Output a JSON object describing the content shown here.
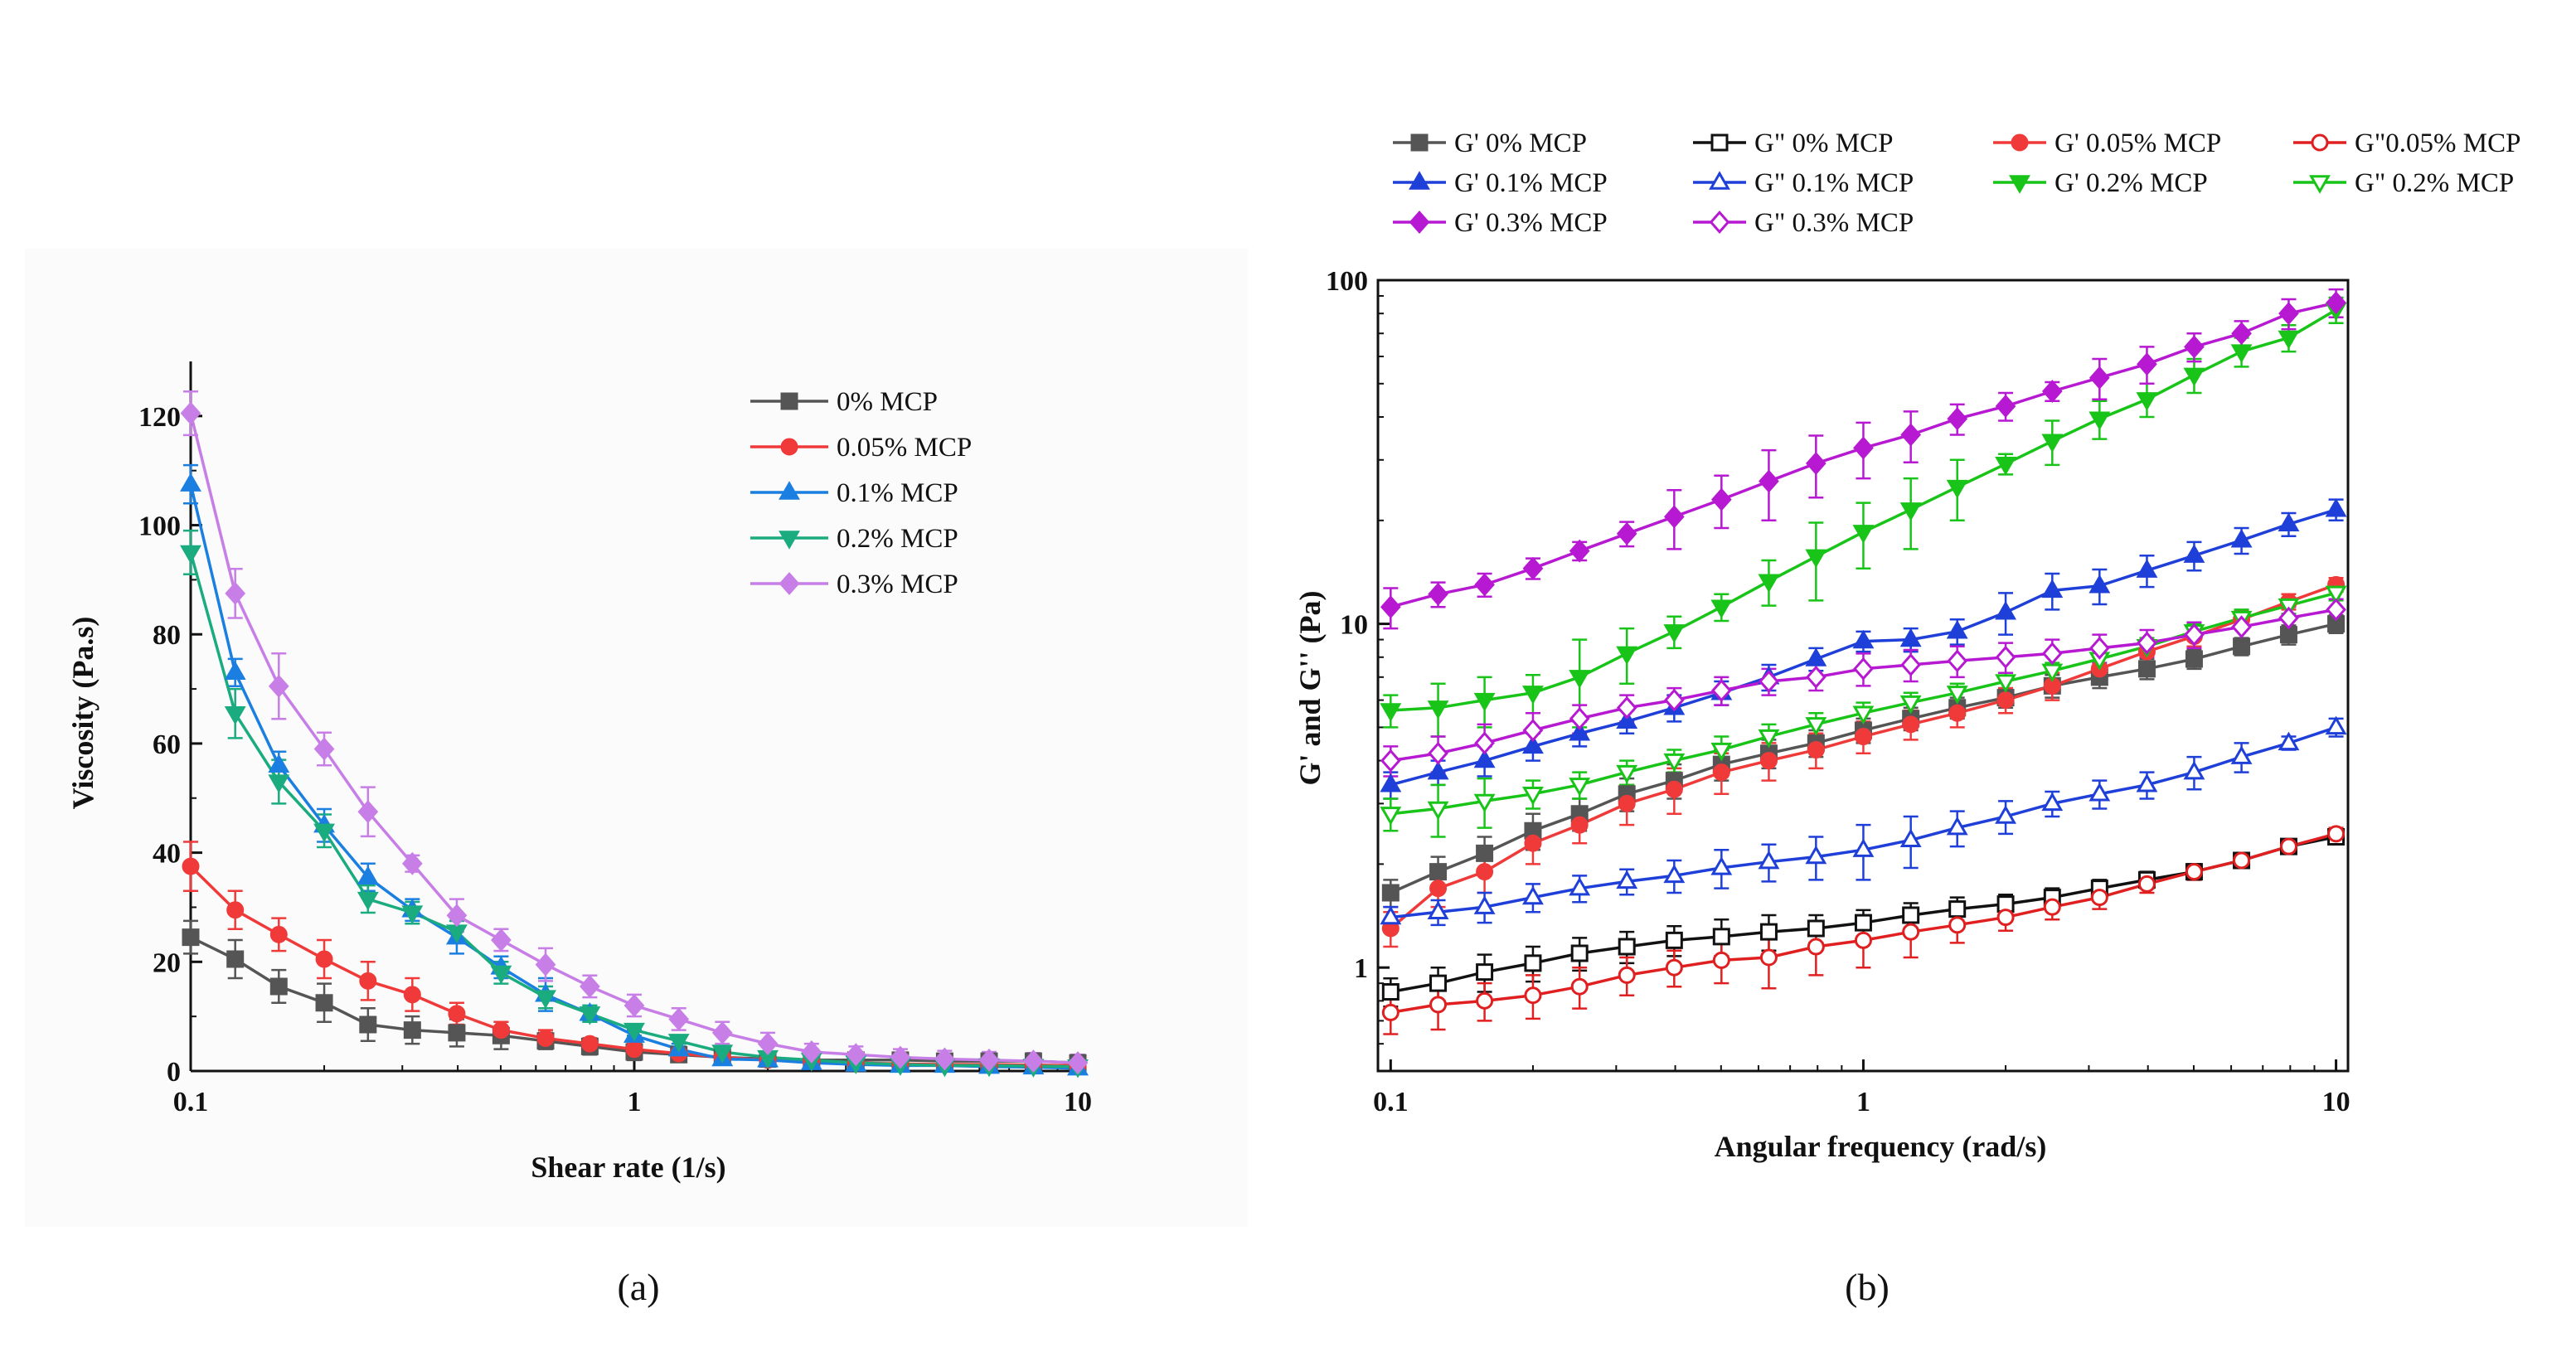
{
  "panels": [
    {
      "caption": "(a)",
      "chart_data": {
        "type": "line",
        "title": "",
        "xlabel": "Shear rate (1/s)",
        "ylabel": "Viscosity (Pa.s)",
        "xscale": "log",
        "xlim": [
          0.1,
          10
        ],
        "ylim": [
          0,
          130
        ],
        "xticks": [
          0.1,
          1,
          10
        ],
        "xtick_labels": [
          "0.1",
          "1",
          "10"
        ],
        "yticks": [
          0,
          20,
          40,
          60,
          80,
          100,
          120
        ],
        "ytick_labels": [
          "0",
          "20",
          "40",
          "60",
          "80",
          "100",
          "120"
        ],
        "grid": false,
        "legend_position": "top-right",
        "x": [
          0.1,
          0.126,
          0.158,
          0.2,
          0.251,
          0.316,
          0.398,
          0.501,
          0.631,
          0.794,
          1.0,
          1.26,
          1.58,
          2.0,
          2.51,
          3.16,
          3.98,
          5.01,
          6.31,
          7.94,
          10.0
        ],
        "series": [
          {
            "name": "0% MCP",
            "color": "#555555",
            "marker": "square",
            "filled": true,
            "values": [
              24.5,
              20.5,
              15.5,
              12.5,
              8.5,
              7.5,
              7.0,
              6.5,
              5.5,
              4.5,
              3.5,
              3.0,
              2.5,
              2.2,
              2.0,
              2.0,
              2.0,
              1.8,
              1.8,
              1.8,
              1.5
            ],
            "errors": [
              3,
              3.5,
              3,
              3.5,
              3,
              2.5,
              2.5,
              2.5,
              1.5,
              1.5,
              1.5,
              1,
              1,
              1,
              1,
              1,
              1,
              1,
              1,
              1,
              1
            ]
          },
          {
            "name": "0.05% MCP",
            "color": "#f03a3a",
            "marker": "circle",
            "filled": true,
            "values": [
              37.5,
              29.5,
              25.0,
              20.5,
              16.5,
              14.0,
              10.5,
              7.5,
              6.0,
              5.0,
              4.0,
              3.2,
              2.5,
              2.0,
              1.8,
              1.5,
              1.3,
              1.2,
              1.2,
              1.1,
              1.0
            ],
            "errors": [
              4.5,
              3.5,
              3,
              3.5,
              3.5,
              3,
              2,
              1.5,
              1.5,
              1,
              1,
              1,
              1,
              1,
              1,
              1,
              1,
              1,
              1,
              1,
              1
            ]
          },
          {
            "name": "0.1% MCP",
            "color": "#1a7fe0",
            "marker": "triangle-up",
            "filled": true,
            "values": [
              107.5,
              73.0,
              56.0,
              45.0,
              35.5,
              29.5,
              24.5,
              19.0,
              14.0,
              10.5,
              6.5,
              4.0,
              2.2,
              2.0,
              1.5,
              1.2,
              1.0,
              1.0,
              0.8,
              0.7,
              0.5
            ],
            "errors": [
              3.5,
              2.5,
              2.5,
              3,
              2.5,
              2,
              3,
              2,
              3,
              1.5,
              1,
              1,
              1,
              1,
              0.8,
              0.8,
              0.8,
              0.8,
              0.8,
              0.8,
              0.8
            ]
          },
          {
            "name": "0.2% MCP",
            "color": "#1aab7f",
            "marker": "triangle-down",
            "filled": true,
            "values": [
              95.0,
              65.5,
              53.0,
              44.0,
              31.5,
              29.0,
              25.5,
              18.0,
              13.5,
              10.5,
              7.5,
              5.5,
              3.5,
              2.5,
              2.0,
              1.5,
              1.2,
              1.0,
              1.0,
              0.9,
              0.8
            ],
            "errors": [
              4,
              4.5,
              4,
              3,
              2.5,
              2,
              2,
              2,
              2,
              1.5,
              1,
              1,
              1,
              1,
              1,
              0.8,
              0.8,
              0.8,
              0.8,
              0.8,
              0.8
            ]
          },
          {
            "name": "0.3% MCP",
            "color": "#c77ee6",
            "marker": "diamond",
            "filled": true,
            "values": [
              120.5,
              87.5,
              70.5,
              59.0,
              47.5,
              38.0,
              28.5,
              24.0,
              19.5,
              15.5,
              12.0,
              9.5,
              7.0,
              5.0,
              3.5,
              3.0,
              2.5,
              2.2,
              2.0,
              1.8,
              1.5
            ],
            "errors": [
              4,
              4.5,
              6,
              3,
              4.5,
              1.5,
              3,
              2,
              3,
              2,
              2,
              2,
              2,
              2,
              1.5,
              1.5,
              1.5,
              1.5,
              1.5,
              1.5,
              1.5
            ]
          }
        ]
      }
    },
    {
      "caption": "(b)",
      "chart_data": {
        "type": "line",
        "title": "",
        "xlabel": "Angular frequency (rad/s)",
        "ylabel": "G' and G'' (Pa)",
        "xscale": "log",
        "yscale": "log",
        "xlim": [
          0.094,
          10.6
        ],
        "ylim": [
          0.5,
          100
        ],
        "xticks": [
          0.1,
          1,
          10
        ],
        "xtick_labels": [
          "0.1",
          "1",
          "10"
        ],
        "yticks": [
          1,
          10,
          100
        ],
        "ytick_labels": [
          "1",
          "10",
          "100"
        ],
        "grid": false,
        "legend_position": "top",
        "x": [
          0.1,
          0.126,
          0.158,
          0.2,
          0.251,
          0.316,
          0.398,
          0.501,
          0.631,
          0.794,
          1.0,
          1.26,
          1.58,
          2.0,
          2.51,
          3.16,
          3.98,
          5.01,
          6.31,
          7.94,
          10.0
        ],
        "series": [
          {
            "name": "G' 0% MCP",
            "color": "#555555",
            "marker": "square",
            "filled": true,
            "values": [
              1.65,
              1.9,
              2.15,
              2.5,
              2.8,
              3.2,
              3.5,
              3.9,
              4.2,
              4.5,
              4.9,
              5.3,
              5.7,
              6.1,
              6.6,
              7.0,
              7.4,
              7.9,
              8.6,
              9.3,
              10.0
            ],
            "errors": [
              0.15,
              0.2,
              0.25,
              0.3,
              0.3,
              0.35,
              0.4,
              0.4,
              0.4,
              0.4,
              0.4,
              0.4,
              0.4,
              0.4,
              0.5,
              0.5,
              0.5,
              0.5,
              0.5,
              0.6,
              0.6
            ]
          },
          {
            "name": "G\" 0% MCP",
            "color": "#111111",
            "marker": "square",
            "filled": false,
            "values": [
              0.85,
              0.9,
              0.97,
              1.03,
              1.1,
              1.15,
              1.2,
              1.23,
              1.27,
              1.3,
              1.35,
              1.42,
              1.48,
              1.53,
              1.6,
              1.7,
              1.8,
              1.9,
              2.05,
              2.25,
              2.4
            ],
            "errors": [
              0.08,
              0.1,
              0.12,
              0.12,
              0.12,
              0.12,
              0.12,
              0.15,
              0.15,
              0.12,
              0.12,
              0.12,
              0.12,
              0.1,
              0.1,
              0.1,
              0.1,
              0.1,
              0.1,
              0.1,
              0.1
            ]
          },
          {
            "name": "G' 0.05% MCP",
            "color": "#f03a3a",
            "marker": "circle",
            "filled": true,
            "values": [
              1.3,
              1.7,
              1.9,
              2.3,
              2.6,
              3.0,
              3.3,
              3.7,
              4.0,
              4.3,
              4.7,
              5.1,
              5.5,
              6.0,
              6.6,
              7.4,
              8.3,
              9.2,
              10.3,
              11.6,
              13.0
            ],
            "errors": [
              0.15,
              0.2,
              0.25,
              0.3,
              0.3,
              0.4,
              0.5,
              0.5,
              0.5,
              0.5,
              0.5,
              0.5,
              0.5,
              0.5,
              0.6,
              0.6,
              0.6,
              0.6,
              0.6,
              0.6,
              0.6
            ]
          },
          {
            "name": "G\"0.05% MCP",
            "color": "#e02020",
            "marker": "circle",
            "filled": false,
            "values": [
              0.74,
              0.78,
              0.8,
              0.83,
              0.88,
              0.95,
              1.0,
              1.05,
              1.07,
              1.15,
              1.2,
              1.27,
              1.33,
              1.4,
              1.5,
              1.6,
              1.75,
              1.9,
              2.05,
              2.25,
              2.45
            ],
            "errors": [
              0.1,
              0.12,
              0.1,
              0.12,
              0.12,
              0.12,
              0.12,
              0.15,
              0.2,
              0.2,
              0.2,
              0.2,
              0.15,
              0.12,
              0.12,
              0.12,
              0.1,
              0.1,
              0.1,
              0.1,
              0.1
            ]
          },
          {
            "name": "G' 0.1% MCP",
            "color": "#1f3fd9",
            "marker": "triangle-up",
            "filled": true,
            "values": [
              3.4,
              3.7,
              4.0,
              4.4,
              4.8,
              5.2,
              5.7,
              6.3,
              7.0,
              7.9,
              8.9,
              9.0,
              9.5,
              10.8,
              12.5,
              12.9,
              14.3,
              15.8,
              17.5,
              19.5,
              21.5
            ],
            "errors": [
              0.3,
              0.3,
              0.4,
              0.4,
              0.4,
              0.4,
              0.5,
              0.5,
              0.6,
              0.6,
              0.6,
              0.7,
              0.8,
              1.5,
              1.5,
              1.5,
              1.5,
              1.5,
              1.5,
              1.5,
              1.5
            ]
          },
          {
            "name": "G\" 0.1% MCP",
            "color": "#1f3fd9",
            "marker": "triangle-up",
            "filled": false,
            "values": [
              1.4,
              1.45,
              1.5,
              1.6,
              1.7,
              1.78,
              1.85,
              1.95,
              2.03,
              2.1,
              2.2,
              2.35,
              2.55,
              2.75,
              3.0,
              3.2,
              3.4,
              3.7,
              4.1,
              4.5,
              5.0
            ],
            "errors": [
              0.1,
              0.12,
              0.15,
              0.15,
              0.15,
              0.15,
              0.2,
              0.25,
              0.25,
              0.3,
              0.4,
              0.4,
              0.3,
              0.3,
              0.25,
              0.3,
              0.3,
              0.4,
              0.4,
              0.2,
              0.3
            ]
          },
          {
            "name": "G' 0.2% MCP",
            "color": "#18c418",
            "marker": "triangle-down",
            "filled": true,
            "values": [
              5.6,
              5.7,
              6.0,
              6.3,
              7.0,
              8.2,
              9.5,
              11.2,
              13.3,
              15.7,
              18.5,
              21.5,
              25.0,
              29.2,
              34.0,
              39.5,
              45.0,
              53.0,
              62.0,
              68.0,
              82.0
            ],
            "errors": [
              0.6,
              1.0,
              1.0,
              0.8,
              2.0,
              1.5,
              1.0,
              1.0,
              2.0,
              4.0,
              4.0,
              5.0,
              5.0,
              2.0,
              5.0,
              5.0,
              5.0,
              6.0,
              6.0,
              6.0,
              7.0
            ]
          },
          {
            "name": "G\" 0.2% MCP",
            "color": "#18c418",
            "marker": "triangle-down",
            "filled": false,
            "values": [
              2.8,
              2.9,
              3.05,
              3.2,
              3.4,
              3.7,
              4.0,
              4.3,
              4.7,
              5.1,
              5.5,
              5.9,
              6.3,
              6.8,
              7.3,
              7.9,
              8.6,
              9.5,
              10.4,
              11.3,
              12.3
            ],
            "errors": [
              0.3,
              0.5,
              0.5,
              0.3,
              0.3,
              0.3,
              0.3,
              0.4,
              0.4,
              0.4,
              0.4,
              0.4,
              0.4,
              0.4,
              0.4,
              0.5,
              0.5,
              0.5,
              0.6,
              0.6,
              0.6
            ]
          },
          {
            "name": "G' 0.3% MCP",
            "color": "#b619d1",
            "marker": "diamond",
            "filled": true,
            "values": [
              11.2,
              12.2,
              13.0,
              14.5,
              16.3,
              18.3,
              20.5,
              23.0,
              26.0,
              29.3,
              32.5,
              35.5,
              39.5,
              43.0,
              47.5,
              52.0,
              57.0,
              64.0,
              70.0,
              80.0,
              86.0
            ],
            "errors": [
              1.5,
              1.0,
              1.0,
              1.0,
              1.0,
              1.5,
              4.0,
              4.0,
              6.0,
              6.0,
              6.0,
              6.0,
              4.0,
              4.0,
              3.0,
              7.0,
              7.0,
              6.0,
              6.0,
              8.0,
              8.0
            ]
          },
          {
            "name": "G\" 0.3% MCP",
            "color": "#b619d1",
            "marker": "diamond",
            "filled": false,
            "values": [
              4.0,
              4.2,
              4.5,
              4.9,
              5.3,
              5.7,
              6.0,
              6.4,
              6.8,
              7.0,
              7.4,
              7.6,
              7.8,
              8.0,
              8.2,
              8.5,
              8.8,
              9.3,
              9.8,
              10.4,
              11.0
            ],
            "errors": [
              0.4,
              0.5,
              0.6,
              0.6,
              0.5,
              0.5,
              0.5,
              0.6,
              0.6,
              0.6,
              0.8,
              0.8,
              0.8,
              0.8,
              0.8,
              0.8,
              0.8,
              0.8,
              0.8,
              0.8,
              0.8
            ]
          }
        ]
      }
    }
  ]
}
